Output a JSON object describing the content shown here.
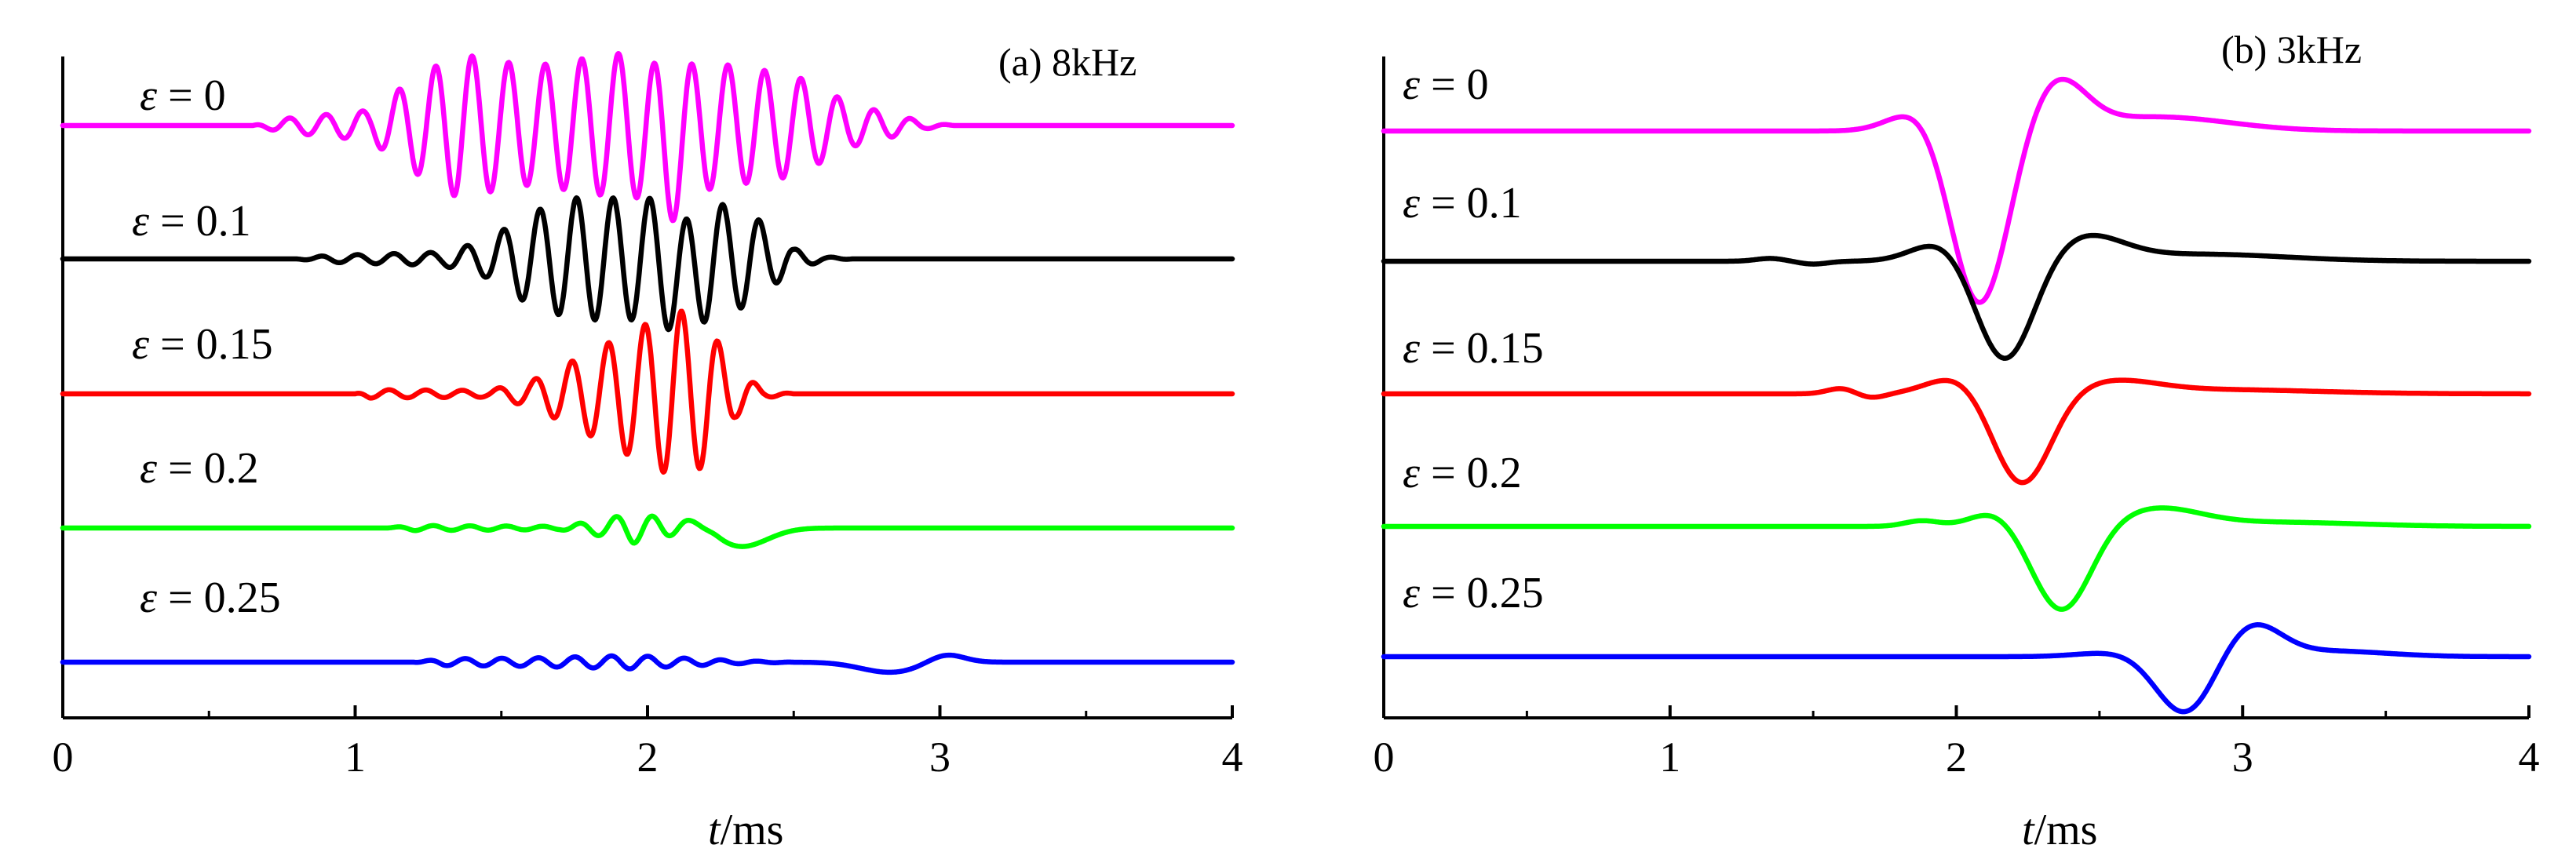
{
  "chart_data": [
    {
      "type": "line",
      "title": "(a) 8kHz",
      "xlabel_italic": "t",
      "xlabel_unit": "/ms",
      "xlim": [
        0,
        4
      ],
      "x_ticks": [
        0,
        1,
        2,
        3,
        4
      ],
      "x_tick_labels": [
        "0",
        "1",
        "2",
        "3",
        "4"
      ],
      "yaxis_ticks": false,
      "grid": false,
      "series": [
        {
          "name": "ε = 0",
          "symbol": "ε",
          "value_text": "= 0",
          "color": "#ff00ff",
          "waveform": "burst",
          "envelope": [
            [
              0.0,
              0
            ],
            [
              0.65,
              0
            ],
            [
              0.75,
              0.08
            ],
            [
              1.05,
              0.18
            ],
            [
              1.2,
              0.55
            ],
            [
              1.35,
              0.85
            ],
            [
              1.6,
              0.7
            ],
            [
              1.9,
              0.85
            ],
            [
              2.05,
              0.85
            ],
            [
              2.3,
              0.7
            ],
            [
              2.5,
              0.6
            ],
            [
              2.7,
              0.25
            ],
            [
              2.95,
              0.04
            ],
            [
              3.05,
              0
            ],
            [
              4.0,
              0
            ]
          ],
          "frequency_khz": 8,
          "phase": 0.3,
          "amp_scale": 1.0,
          "dip": {
            "t": 2.08,
            "amp": -0.3,
            "width": 0.04
          }
        },
        {
          "name": "ε = 0.1",
          "symbol": "ε",
          "value_text": "= 0.1",
          "color": "#000000",
          "waveform": "burst",
          "envelope": [
            [
              0.0,
              0
            ],
            [
              0.8,
              0
            ],
            [
              0.9,
              0.04
            ],
            [
              1.3,
              0.08
            ],
            [
              1.45,
              0.22
            ],
            [
              1.6,
              0.55
            ],
            [
              1.75,
              0.72
            ],
            [
              2.05,
              0.72
            ],
            [
              2.2,
              0.7
            ],
            [
              2.35,
              0.55
            ],
            [
              2.5,
              0.12
            ],
            [
              2.6,
              0.03
            ],
            [
              2.7,
              0
            ],
            [
              4.0,
              0
            ]
          ],
          "frequency_khz": 8,
          "phase": 1.2,
          "amp_scale": 1.0,
          "dip": {
            "t": 2.12,
            "amp": -0.25,
            "width": 0.04
          }
        },
        {
          "name": "ε = 0.15",
          "symbol": "ε",
          "value_text": "= 0.15",
          "color": "#ff0000",
          "waveform": "burst",
          "envelope": [
            [
              0.0,
              0
            ],
            [
              1.0,
              0
            ],
            [
              1.05,
              0.05
            ],
            [
              1.45,
              0.04
            ],
            [
              1.6,
              0.15
            ],
            [
              1.75,
              0.4
            ],
            [
              1.95,
              0.75
            ],
            [
              2.1,
              1.0
            ],
            [
              2.2,
              0.85
            ],
            [
              2.3,
              0.28
            ],
            [
              2.4,
              0.05
            ],
            [
              2.5,
              0
            ],
            [
              4.0,
              0
            ]
          ],
          "frequency_khz": 8,
          "phase": 2.0,
          "amp_scale": 1.0
        },
        {
          "name": "ε = 0.2",
          "symbol": "ε",
          "value_text": "= 0.2",
          "color": "#00ff00",
          "waveform": "burst",
          "envelope": [
            [
              0.0,
              0
            ],
            [
              1.1,
              0
            ],
            [
              1.2,
              0.03
            ],
            [
              1.7,
              0.02
            ],
            [
              1.85,
              0.1
            ],
            [
              1.95,
              0.18
            ],
            [
              2.05,
              0.12
            ],
            [
              2.15,
              0.04
            ],
            [
              2.25,
              0
            ],
            [
              4.0,
              0
            ]
          ],
          "frequency_khz": 8,
          "phase": 0.7,
          "amp_scale": 1.0,
          "pulse": {
            "t": 2.32,
            "amp": -0.22,
            "width": 0.09
          },
          "pulse2": {
            "t": 2.18,
            "amp": 0.1,
            "width": 0.05
          }
        },
        {
          "name": "ε = 0.25",
          "symbol": "ε",
          "value_text": "= 0.25",
          "color": "#0000ff",
          "waveform": "burst",
          "envelope": [
            [
              0.0,
              0
            ],
            [
              1.2,
              0
            ],
            [
              1.3,
              0.04
            ],
            [
              1.6,
              0.05
            ],
            [
              1.95,
              0.08
            ],
            [
              2.05,
              0.06
            ],
            [
              2.3,
              0.02
            ],
            [
              2.5,
              0
            ],
            [
              4.0,
              0
            ]
          ],
          "frequency_khz": 8,
          "phase": 1.5,
          "amp_scale": 1.0,
          "pulse": {
            "t": 2.83,
            "amp": -0.12,
            "width": 0.1
          },
          "pulse2": {
            "t": 3.02,
            "amp": 0.1,
            "width": 0.06
          }
        }
      ]
    },
    {
      "type": "line",
      "title": "(b) 3kHz",
      "xlabel_italic": "t",
      "xlabel_unit": "/ms",
      "xlim": [
        0,
        4
      ],
      "x_ticks": [
        0,
        1,
        2,
        3,
        4
      ],
      "x_tick_labels": [
        "0",
        "1",
        "2",
        "3",
        "4"
      ],
      "yaxis_ticks": false,
      "grid": false,
      "series": [
        {
          "name": "ε = 0",
          "symbol": "ε",
          "value_text": "= 0",
          "color": "#ff00ff",
          "waveform": "pulse",
          "pulses": [
            [
              1.88,
              0.17,
              0.1
            ],
            [
              2.08,
              -1.25,
              0.1
            ],
            [
              2.35,
              0.35,
              0.1
            ],
            [
              2.7,
              0.1,
              0.25
            ]
          ]
        },
        {
          "name": "ε = 0.1",
          "symbol": "ε",
          "value_text": "= 0.1",
          "color": "#000000",
          "waveform": "pulse",
          "pulses": [
            [
              1.35,
              0.02,
              0.05
            ],
            [
              1.5,
              -0.02,
              0.05
            ],
            [
              1.95,
              0.14,
              0.1
            ],
            [
              2.17,
              -0.72,
              0.1
            ],
            [
              2.45,
              0.17,
              0.13
            ],
            [
              2.85,
              0.05,
              0.3
            ]
          ]
        },
        {
          "name": "ε = 0.15",
          "symbol": "ε",
          "value_text": "= 0.15",
          "color": "#ff0000",
          "waveform": "pulse",
          "pulses": [
            [
              1.6,
              0.04,
              0.05
            ],
            [
              1.7,
              -0.03,
              0.05
            ],
            [
              2.0,
              0.12,
              0.1
            ],
            [
              2.23,
              -0.65,
              0.1
            ],
            [
              2.55,
              0.08,
              0.15
            ],
            [
              2.9,
              0.03,
              0.35
            ]
          ]
        },
        {
          "name": "ε = 0.2",
          "symbol": "ε",
          "value_text": "= 0.2",
          "color": "#00ff00",
          "waveform": "pulse",
          "pulses": [
            [
              1.88,
              0.04,
              0.06
            ],
            [
              2.13,
              0.1,
              0.08
            ],
            [
              2.37,
              -0.6,
              0.1
            ],
            [
              2.7,
              0.12,
              0.15
            ],
            [
              3.1,
              0.03,
              0.3
            ]
          ]
        },
        {
          "name": "ε = 0.25",
          "symbol": "ε",
          "value_text": "= 0.25",
          "color": "#0000ff",
          "waveform": "pulse",
          "pulses": [
            [
              2.55,
              0.03,
              0.12
            ],
            [
              2.8,
              -0.41,
              0.1
            ],
            [
              3.03,
              0.23,
              0.1
            ],
            [
              3.3,
              0.04,
              0.2
            ]
          ]
        }
      ]
    }
  ]
}
